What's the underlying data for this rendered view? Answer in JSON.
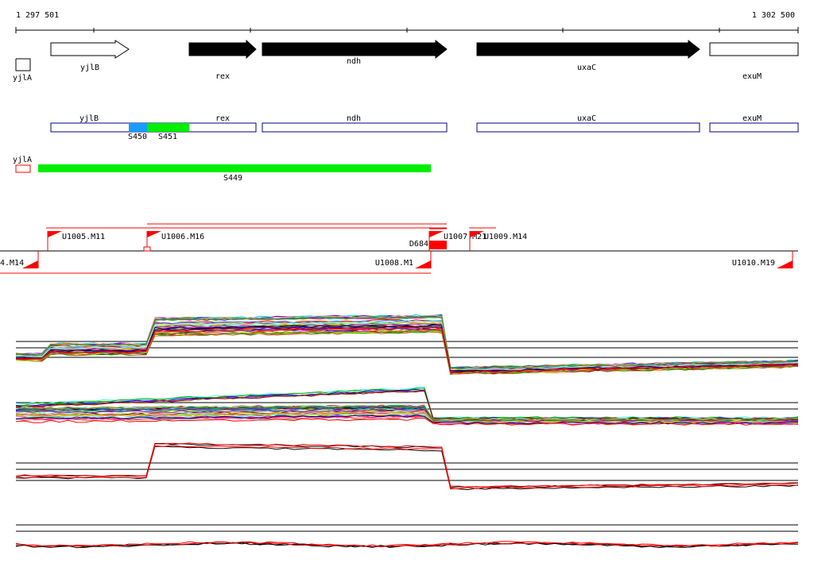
{
  "coords": {
    "start": "1 297 501",
    "end": "1 302 500"
  },
  "genes": [
    {
      "id": "yjlB",
      "label": "yjlB",
      "strand": "+",
      "filled": false
    },
    {
      "id": "rex",
      "label": "rex",
      "strand": "+",
      "filled": true
    },
    {
      "id": "ndh",
      "label": "ndh",
      "strand": "+",
      "filled": true
    },
    {
      "id": "uxaC",
      "label": "uxaC",
      "strand": "+",
      "filled": true
    },
    {
      "id": "exuM",
      "label": "exuM",
      "strand": "+",
      "filled": false
    },
    {
      "id": "yjlA",
      "label": "yjlA",
      "strand": "-",
      "filled": false
    }
  ],
  "annot_row": [
    {
      "id": "yjlB",
      "label": "yjlB"
    },
    {
      "id": "rex",
      "label": "rex"
    },
    {
      "id": "ndh",
      "label": "ndh"
    },
    {
      "id": "uxaC",
      "label": "uxaC"
    },
    {
      "id": "exuM",
      "label": "exuM"
    }
  ],
  "segments": [
    {
      "id": "S450",
      "label": "S450",
      "color": "#1a9cff"
    },
    {
      "id": "S451",
      "label": "S451",
      "color": "#00ee00"
    },
    {
      "id": "S449",
      "label": "S449",
      "color": "#00ee00"
    }
  ],
  "yjlA_small": {
    "label": "yjlA",
    "color": "#ff0000"
  },
  "upshifts": [
    {
      "id": "U1005",
      "label": "U1005.M11"
    },
    {
      "id": "U1006",
      "label": "U1006.M16"
    },
    {
      "id": "D684",
      "label": "D684"
    },
    {
      "id": "U1007",
      "label": "U1007.M21"
    },
    {
      "id": "U1009",
      "label": "U1009.M14"
    },
    {
      "id": "U1004",
      "label": "4.M14"
    },
    {
      "id": "U1008",
      "label": "U1008.M1"
    },
    {
      "id": "U1010",
      "label": "U1010.M19"
    }
  ],
  "colors": {
    "marker": "#ff0000",
    "feature_outline": "#00008b",
    "upshift_line": "#ff0000"
  },
  "panels": [
    {
      "id": "p1",
      "series": 40
    },
    {
      "id": "p2",
      "series": 40
    },
    {
      "id": "p3",
      "series": 4
    },
    {
      "id": "p4",
      "series": 4
    }
  ]
}
